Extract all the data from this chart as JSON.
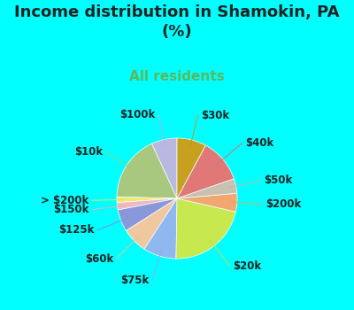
{
  "title": "Income distribution in Shamokin, PA\n(%)",
  "subtitle": "All residents",
  "bg_color": "#00FFFF",
  "chart_bg_top": "#d8f0e8",
  "chart_bg_bot": "#e8f8f0",
  "labels": [
    "$100k",
    "$10k",
    "> $200k",
    "$150k",
    "$125k",
    "$60k",
    "$75k",
    "$20k",
    "$200k",
    "$50k",
    "$40k",
    "$30k"
  ],
  "values": [
    7,
    18,
    1.5,
    2,
    6,
    7,
    9,
    22,
    5,
    4,
    12,
    8
  ],
  "colors": [
    "#b8b8e0",
    "#a8c880",
    "#f0e870",
    "#f0b8c0",
    "#8898d8",
    "#f0c8a0",
    "#90b8f0",
    "#c8e850",
    "#f0a870",
    "#c8c0b0",
    "#e07878",
    "#c8a020"
  ],
  "line_colors": [
    "#b0b0d8",
    "#a0c878",
    "#e8e068",
    "#e8b0b8",
    "#8090d0",
    "#e8c098",
    "#88b0e8",
    "#c0e048",
    "#e8a068",
    "#c0b8a8",
    "#d87070",
    "#c09818"
  ],
  "label_fontsize": 8.5,
  "title_fontsize": 13,
  "subtitle_fontsize": 11,
  "title_color": "#222222",
  "subtitle_color": "#5cb85c"
}
